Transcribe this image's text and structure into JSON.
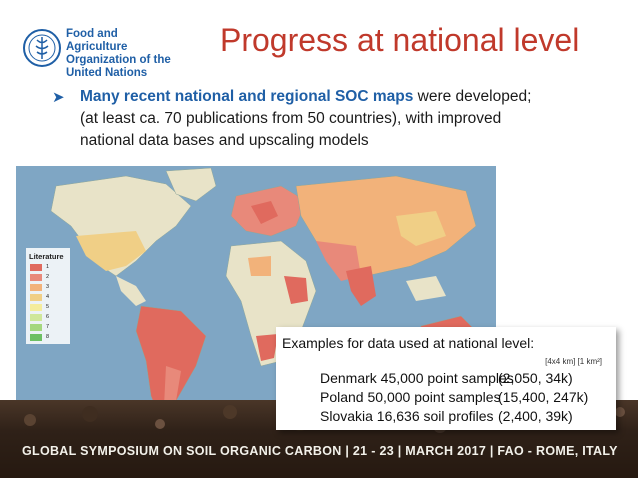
{
  "header": {
    "logo_lines": [
      "Food and Agriculture",
      "Organization of the",
      "United Nations"
    ],
    "logo_emblem_text": "FAO",
    "title": "Progress at national level"
  },
  "bullet": {
    "strong": "Many recent national and regional SOC maps",
    "rest1": " were developed;",
    "line2": "(at least ca. 70 publications from 50 countries), with improved",
    "line3": "national data bases and upscaling models"
  },
  "map": {
    "legend_title": "Literature",
    "legend_items": [
      {
        "label": "1",
        "color": "#e06a5e"
      },
      {
        "label": "2",
        "color": "#e8897a"
      },
      {
        "label": "3",
        "color": "#f2b27a"
      },
      {
        "label": "4",
        "color": "#f0cf86"
      },
      {
        "label": "5",
        "color": "#f4ec9c"
      },
      {
        "label": "6",
        "color": "#cfe79a"
      },
      {
        "label": "7",
        "color": "#a4d77e"
      },
      {
        "label": "8",
        "color": "#6dbf63"
      }
    ]
  },
  "infobox": {
    "heading": "Examples for data used at national level:",
    "units": "[4x4 km]  [1 km²]",
    "rows": [
      {
        "label": "Denmark 45,000 point samples",
        "value": "(2,050, 34k)"
      },
      {
        "label": "Poland 50,000 point samples",
        "value": "(15,400, 247k)"
      },
      {
        "label": "Slovakia 16,636 soil profiles",
        "value": "(2,400, 39k)"
      }
    ]
  },
  "footer": {
    "text": "GLOBAL SYMPOSIUM ON SOIL ORGANIC CARBON | 21 - 23 | MARCH 2017 | FAO - ROME, ITALY"
  }
}
